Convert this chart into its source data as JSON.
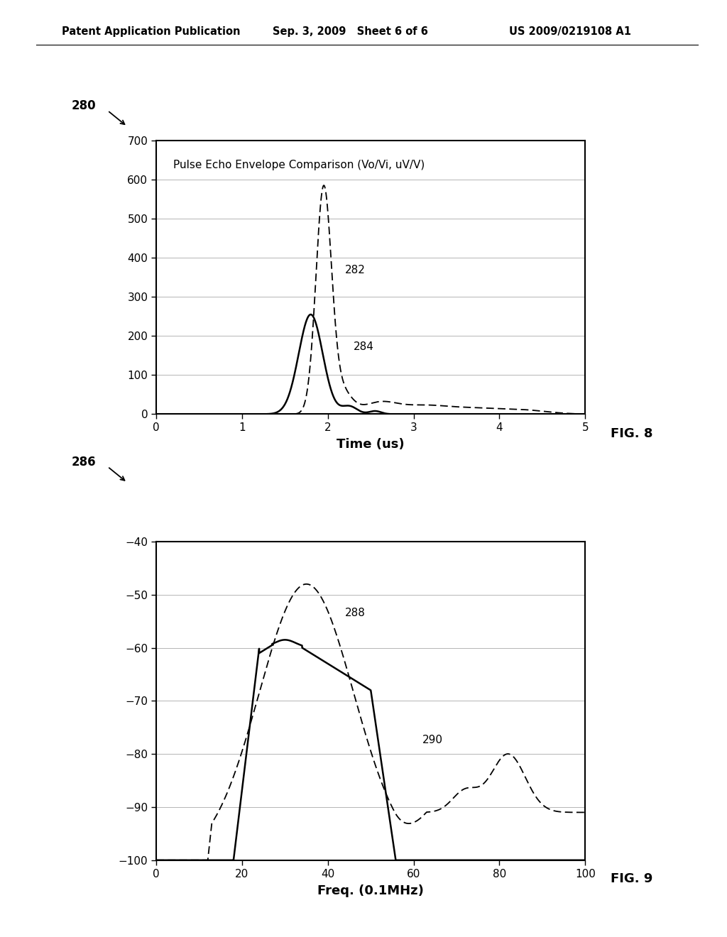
{
  "header_left": "Patent Application Publication",
  "header_mid": "Sep. 3, 2009   Sheet 6 of 6",
  "header_right": "US 2009/0219108 A1",
  "fig8_figure_label": "280",
  "fig8_title": "Pulse Echo Envelope Comparison (Vo/Vi, uV/V)",
  "fig8_xlabel": "Time (us)",
  "fig8_xlim": [
    0,
    5
  ],
  "fig8_ylim": [
    0,
    700
  ],
  "fig8_yticks": [
    0,
    100,
    200,
    300,
    400,
    500,
    600,
    700
  ],
  "fig8_xticks": [
    0,
    1,
    2,
    3,
    4,
    5
  ],
  "fig8_label_dashed": "282",
  "fig8_label_solid": "284",
  "fig_name8": "FIG. 8",
  "fig9_figure_label": "286",
  "fig9_xlabel": "Freq. (0.1MHz)",
  "fig9_xlim": [
    0,
    100
  ],
  "fig9_ylim": [
    -100,
    -40
  ],
  "fig9_yticks": [
    -100,
    -90,
    -80,
    -70,
    -60,
    -50,
    -40
  ],
  "fig9_xticks": [
    0,
    20,
    40,
    60,
    80,
    100
  ],
  "fig9_label_dashed": "288",
  "fig9_label_solid": "290",
  "fig_name9": "FIG. 9",
  "bg_color": "#ffffff"
}
